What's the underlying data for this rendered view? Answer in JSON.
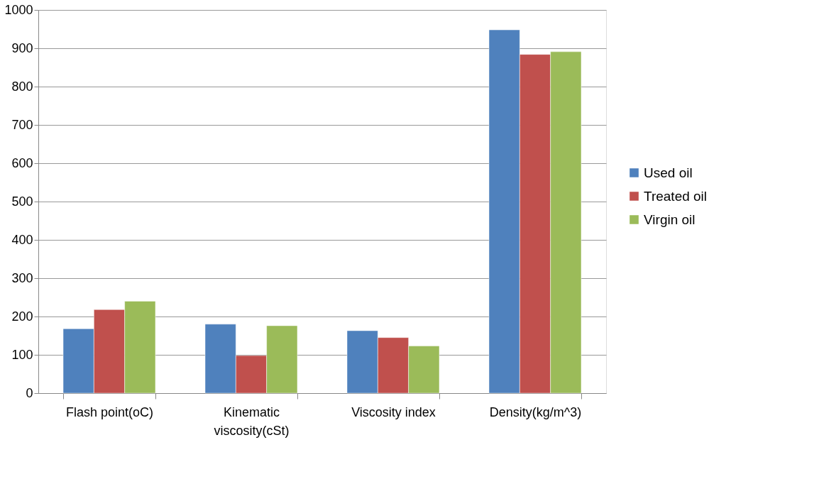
{
  "chart_data": {
    "type": "bar",
    "categories": [
      "Flash point(oC)",
      "Kinematic viscosity(cSt)",
      "Viscosity index",
      "Density(kg/m^3)"
    ],
    "series": [
      {
        "name": "Used oil",
        "color": "#4f81bd",
        "values": [
          168,
          180,
          163,
          948
        ]
      },
      {
        "name": "Treated oil",
        "color": "#c0504d",
        "values": [
          218,
          98,
          145,
          884
        ]
      },
      {
        "name": "Virgin oil",
        "color": "#9bbb59",
        "values": [
          240,
          176,
          123,
          891
        ]
      }
    ],
    "ylim": [
      0,
      1000
    ],
    "yticks": [
      0,
      100,
      200,
      300,
      400,
      500,
      600,
      700,
      800,
      900,
      1000
    ],
    "grid": "y",
    "legend": "right"
  }
}
